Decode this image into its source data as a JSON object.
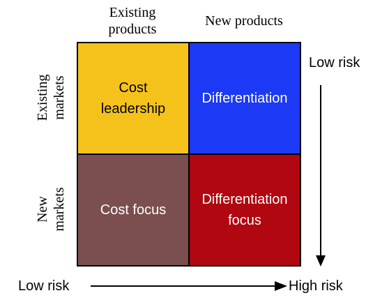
{
  "columns": [
    "Existing\nproducts",
    "New products"
  ],
  "rows": [
    "Existing\nmarkets",
    "New\nmarkets"
  ],
  "cells": [
    {
      "label": "Cost\nleadership",
      "color": "#F5C21B",
      "text_color": "#000000"
    },
    {
      "label": "Differentiation",
      "color": "#1C39F5",
      "text_color": "#FFFFFF"
    },
    {
      "label": "Cost focus",
      "color": "#7B4F4F",
      "text_color": "#FFFFFF"
    },
    {
      "label": "Differentiation\nfocus",
      "color": "#B00710",
      "text_color": "#FFFFFF"
    }
  ],
  "vertical_axis": {
    "top_label": "Low risk"
  },
  "horizontal_axis": {
    "left_label": "Low risk",
    "right_label": "High risk"
  }
}
